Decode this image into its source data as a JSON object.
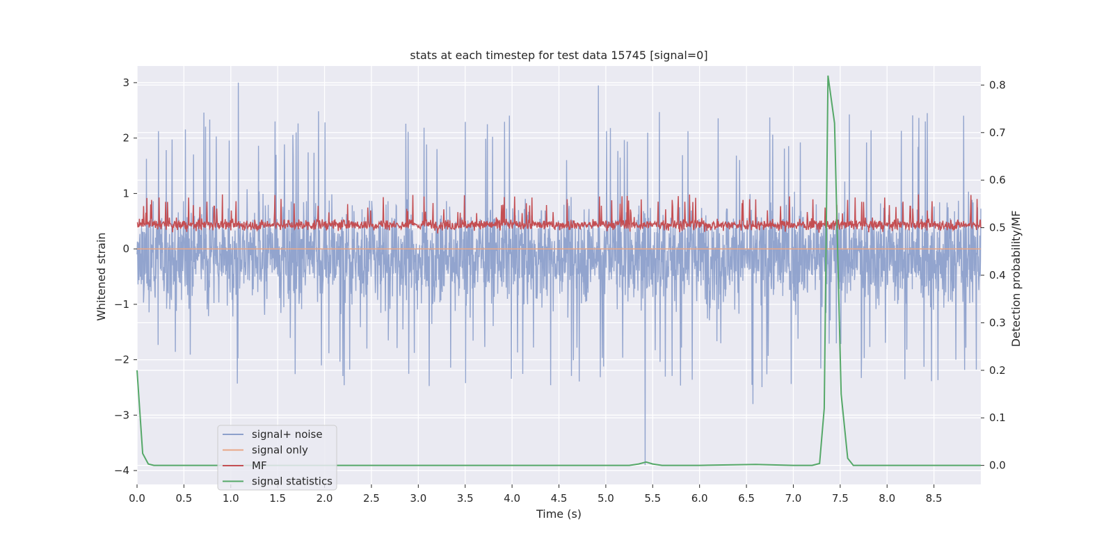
{
  "chart_data": {
    "type": "line",
    "title": "stats at each timestep for test data 15745 [signal=0]",
    "xlabel": "Time (s)",
    "ylabel_left": "Whitened strain",
    "ylabel_right": "Detection probability/MF",
    "xlim": [
      0.0,
      9.0
    ],
    "ylim_left": [
      -4.25,
      3.3
    ],
    "ylim_right": [
      -0.04,
      0.84
    ],
    "x_ticks": [
      "0.0",
      "0.5",
      "1.0",
      "1.5",
      "2.0",
      "2.5",
      "3.0",
      "3.5",
      "4.0",
      "4.5",
      "5.0",
      "5.5",
      "6.0",
      "6.5",
      "7.0",
      "7.5",
      "8.0",
      "8.5"
    ],
    "x_tick_values": [
      0.0,
      0.5,
      1.0,
      1.5,
      2.0,
      2.5,
      3.0,
      3.5,
      4.0,
      4.5,
      5.0,
      5.5,
      6.0,
      6.5,
      7.0,
      7.5,
      8.0,
      8.5
    ],
    "y_ticks_left": [
      "3",
      "2",
      "1",
      "0",
      "−1",
      "−2",
      "−3",
      "−4"
    ],
    "y_tick_values_left": [
      3,
      2,
      1,
      0,
      -1,
      -2,
      -3,
      -4
    ],
    "y_ticks_right": [
      "0.8",
      "0.7",
      "0.6",
      "0.5",
      "0.4",
      "0.3",
      "0.2",
      "0.1",
      "0.0"
    ],
    "y_tick_values_right": [
      0.8,
      0.7,
      0.6,
      0.5,
      0.4,
      0.3,
      0.2,
      0.1,
      0.0
    ],
    "grid": true,
    "legend_position": "lower-left",
    "series": [
      {
        "name": "signal+ noise",
        "axis": "left",
        "color": "#8da0cb",
        "description_values": {
          "typical_min": -1.7,
          "typical_max": 1.6,
          "max": 3.0,
          "min": -3.9
        },
        "peaks": [
          {
            "x": 1.08,
            "y": 3.0
          },
          {
            "x": 4.92,
            "y": 2.95
          },
          {
            "x": 5.42,
            "y": -3.9
          },
          {
            "x": 6.57,
            "y": -2.8
          }
        ]
      },
      {
        "name": "signal only",
        "axis": "left",
        "color": "#e8a686",
        "values_constant": 0.0
      },
      {
        "name": "MF",
        "axis": "right",
        "color": "#c44e52",
        "description_values": {
          "typical_min": 0.49,
          "typical_max": 0.53,
          "max": 0.57
        }
      },
      {
        "name": "signal statistics",
        "axis": "right",
        "color": "#55a868",
        "x": [
          0.0,
          0.06,
          0.12,
          0.18,
          0.25,
          0.5,
          1.0,
          2.0,
          3.0,
          4.0,
          5.0,
          5.25,
          5.35,
          5.43,
          5.5,
          5.6,
          6.0,
          6.6,
          7.0,
          7.2,
          7.28,
          7.33,
          7.37,
          7.44,
          7.51,
          7.58,
          7.64,
          8.0,
          9.0
        ],
        "values": [
          0.2,
          0.025,
          0.003,
          0.0,
          0.0,
          0.0,
          0.0,
          0.0,
          0.0,
          0.0,
          0.0,
          0.0,
          0.003,
          0.007,
          0.003,
          0.0,
          0.0,
          0.002,
          0.0,
          0.0,
          0.004,
          0.12,
          0.82,
          0.72,
          0.15,
          0.015,
          0.0,
          0.0,
          0.0
        ]
      }
    ]
  }
}
